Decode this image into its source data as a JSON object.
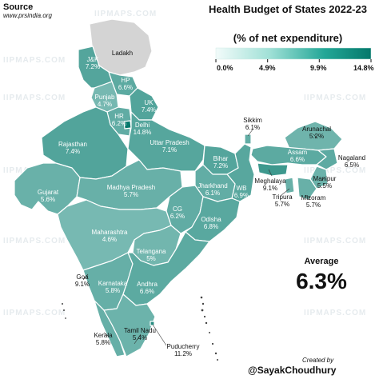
{
  "source": {
    "heading": "Source",
    "url": "www.prsindia.org"
  },
  "title": "Health Budget of States 2022-23",
  "subtitle": "(% of net expenditure)",
  "legend": {
    "ticks": [
      "0.0%",
      "4.9%",
      "9.9%",
      "14.8%"
    ],
    "min": 0,
    "max": 14.8,
    "color_low": "#e9f9f7",
    "color_high": "#04786b"
  },
  "average": {
    "label": "Average",
    "value": "6.3%"
  },
  "credit": {
    "label": "Created by",
    "handle": "@SayakChoudhury"
  },
  "watermark": "IIPMAPS.COM",
  "colors": {
    "no_data": "#d4d4d4",
    "border": "#ffffff"
  },
  "regions": [
    {
      "key": "ladakh",
      "name": "Ladakh",
      "value": ""
    },
    {
      "key": "jk",
      "name": "J&K",
      "value": "7.2%"
    },
    {
      "key": "hp",
      "name": "HP",
      "value": "6.6%"
    },
    {
      "key": "punjab",
      "name": "Punjab",
      "value": "4.7%"
    },
    {
      "key": "uk",
      "name": "UK",
      "value": "7.4%"
    },
    {
      "key": "hr",
      "name": "HR",
      "value": "6.2%"
    },
    {
      "key": "delhi",
      "name": "Delhi",
      "value": "14.8%"
    },
    {
      "key": "rajasthan",
      "name": "Rajasthan",
      "value": "7.4%"
    },
    {
      "key": "up",
      "name": "Uttar Pradesh",
      "value": "7.1%"
    },
    {
      "key": "bihar",
      "name": "Bihar",
      "value": "7.2%"
    },
    {
      "key": "sikkim",
      "name": "Sikkim",
      "value": "6.1%"
    },
    {
      "key": "arunachal",
      "name": "Arunachal",
      "value": "5.2%"
    },
    {
      "key": "assam",
      "name": "Assam",
      "value": "6.6%"
    },
    {
      "key": "nagaland",
      "name": "Nagaland",
      "value": "6.5%"
    },
    {
      "key": "meghalaya",
      "name": "Meghalaya",
      "value": "9.1%"
    },
    {
      "key": "manipur",
      "name": "Manipur",
      "value": "5.5%"
    },
    {
      "key": "mizoram",
      "name": "Mizoram",
      "value": "5.7%"
    },
    {
      "key": "tripura",
      "name": "Tripura",
      "value": "5.7%"
    },
    {
      "key": "gujarat",
      "name": "Gujarat",
      "value": "5.6%"
    },
    {
      "key": "mp",
      "name": "Madhya Pradesh",
      "value": "5.7%"
    },
    {
      "key": "jharkhand",
      "name": "Jharkhand",
      "value": "6.1%"
    },
    {
      "key": "wb",
      "name": "WB",
      "value": "6.9%"
    },
    {
      "key": "cg",
      "name": "CG",
      "value": "6.2%"
    },
    {
      "key": "odisha",
      "name": "Odisha",
      "value": "6.8%"
    },
    {
      "key": "maharashtra",
      "name": "Maharashtra",
      "value": "4.6%"
    },
    {
      "key": "telangana",
      "name": "Telangana",
      "value": "5%"
    },
    {
      "key": "goa",
      "name": "Goa",
      "value": "9.1%"
    },
    {
      "key": "karnataka",
      "name": "Karnataka",
      "value": "5.8%"
    },
    {
      "key": "andhra",
      "name": "Andhra",
      "value": "6.6%"
    },
    {
      "key": "kerala",
      "name": "Kerala",
      "value": "5.8%"
    },
    {
      "key": "tn",
      "name": "Tamil Nadu",
      "value": "5.4%"
    },
    {
      "key": "puducherry",
      "name": "Puducherry",
      "value": "11.2%"
    }
  ]
}
